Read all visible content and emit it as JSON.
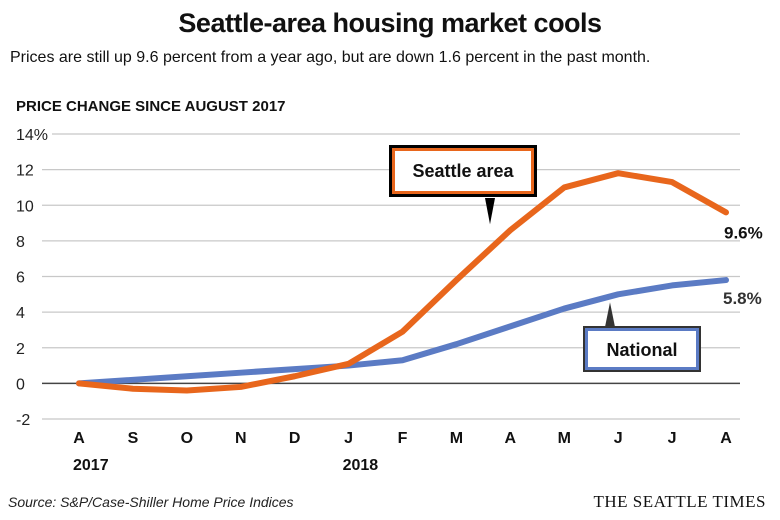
{
  "header": {
    "title": "Seattle-area housing market cools",
    "subtitle": "Prices are still up 9.6 percent from a year ago, but are down 1.6 percent in the past month.",
    "axis_title": "PRICE CHANGE SINCE AUGUST 2017"
  },
  "footer": {
    "source": "Source: S&P/Case-Shiller Home Price Indices",
    "brand": "THE SEATTLE TIMES"
  },
  "chart_data": {
    "type": "line",
    "title": "Seattle-area housing market cools",
    "subtitle": "Prices are still up 9.6 percent from a year ago, but are down 1.6 percent in the past month.",
    "ylabel": "PRICE CHANGE SINCE AUGUST 2017",
    "xlabel": "",
    "categories": [
      "A",
      "S",
      "O",
      "N",
      "D",
      "J",
      "F",
      "M",
      "A",
      "M",
      "J",
      "J",
      "A"
    ],
    "year_labels": [
      {
        "index": 0,
        "label": "2017"
      },
      {
        "index": 5,
        "label": "2018"
      }
    ],
    "ylim": [
      -2,
      14
    ],
    "yticks": [
      -2,
      0,
      2,
      4,
      6,
      8,
      10,
      12,
      14
    ],
    "ytick_labels": [
      "-2",
      "0",
      "2",
      "4",
      "6",
      "8",
      "10",
      "12",
      "14%"
    ],
    "grid": true,
    "series": [
      {
        "name": "Seattle area",
        "color": "#e8661c",
        "values": [
          0,
          -0.3,
          -0.4,
          -0.2,
          0.4,
          1.1,
          2.9,
          5.8,
          8.6,
          11.0,
          11.8,
          11.3,
          9.6
        ],
        "end_label": "9.6%",
        "callout_index": 8
      },
      {
        "name": "National",
        "color": "#5b7bc4",
        "values": [
          0,
          0.2,
          0.4,
          0.6,
          0.8,
          1.0,
          1.3,
          2.2,
          3.2,
          4.2,
          5.0,
          5.5,
          5.8
        ],
        "end_label": "5.8%",
        "callout_index": 10
      }
    ]
  }
}
